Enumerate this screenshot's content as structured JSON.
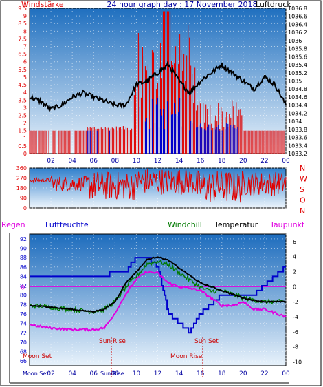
{
  "colors": {
    "red": "#e00000",
    "blue": "#0000cc",
    "black": "#000000",
    "green": "#007a00",
    "magenta": "#e000e0",
    "navy": "#0000a0"
  },
  "top": {
    "left_title": "Windstärke",
    "center_title": "24 hour graph day : 17 November 2018",
    "right_title": "Luftdruck",
    "left_ticks": [
      "0",
      "0.5",
      "1",
      "1.5",
      "2",
      "2.5",
      "3",
      "3.5",
      "4",
      "4.5",
      "5",
      "5.5",
      "6",
      "6.5",
      "7",
      "7.5",
      "8",
      "8.5",
      "9",
      "9.5"
    ],
    "right_ticks": [
      "1033.2",
      "1033.4",
      "1033.6",
      "1033.8",
      "1034",
      "1034.2",
      "1034.4",
      "1034.6",
      "1034.8",
      "1035",
      "1035.2",
      "1035.4",
      "1035.6",
      "1035.8",
      "1036",
      "1036.2",
      "1036.4",
      "1036.6",
      "1036.8"
    ],
    "x_ticks": [
      "02",
      "04",
      "06",
      "08",
      "10",
      "12",
      "14",
      "16",
      "18",
      "20",
      "22",
      "00"
    ]
  },
  "mid": {
    "left_ticks": [
      "0",
      "90",
      "180",
      "270",
      "360"
    ],
    "right_labels": [
      "N",
      "W",
      "S",
      "O",
      "N"
    ]
  },
  "bottom": {
    "legend": {
      "regen": "Regen",
      "luftfeuchte": "Luftfeuchte",
      "windchill": "Windchill",
      "temperatur": "Temperatur",
      "taupunkt": "Taupunkt"
    },
    "left_ticks": [
      "66",
      "68",
      "70",
      "72",
      "74",
      "76",
      "78",
      "80",
      "82",
      "84",
      "86",
      "88",
      "90",
      "92"
    ],
    "right_ticks": [
      "-10",
      "-8",
      "-6",
      "-4",
      "-2",
      "0",
      "2",
      "4",
      "6"
    ],
    "zero_label": "0",
    "x_ticks": [
      "02",
      "04",
      "06",
      "08",
      "10",
      "12",
      "14",
      "16",
      "18",
      "20",
      "22",
      "00"
    ],
    "annotations": {
      "moon_set": "Moon Set",
      "sun_rise": "Sun Rise",
      "sun_set": "Sun Set",
      "moon_rise": "Moon Rise"
    },
    "bottom_labels": {
      "moon_set": "Moon Set",
      "sun_rise": "Sun Rise"
    }
  },
  "chart_data": [
    {
      "type": "line",
      "title": "24 hour graph day : 17 November 2018",
      "ylabel": "Windstärke",
      "y2label": "Luftdruck",
      "ylim": [
        0,
        9.5
      ],
      "y2lim": [
        1033.2,
        1036.8
      ],
      "x": [
        "02",
        "04",
        "06",
        "08",
        "10",
        "12",
        "14",
        "16",
        "18",
        "20",
        "22",
        "00"
      ],
      "series": [
        {
          "name": "Luftdruck",
          "x": [
            0,
            1,
            2,
            3,
            4,
            5,
            6,
            7,
            8,
            9,
            10,
            11,
            12,
            13,
            14,
            15,
            16,
            17,
            18,
            19,
            20,
            21,
            22,
            23,
            24
          ],
          "values": [
            1034.6,
            1034.5,
            1034.3,
            1034.4,
            1034.6,
            1034.7,
            1034.6,
            1034.5,
            1034.4,
            1034.4,
            1034.9,
            1035.0,
            1035.2,
            1035.4,
            1035.0,
            1034.7,
            1035.0,
            1035.2,
            1035.4,
            1035.2,
            1035.0,
            1034.8,
            1035.1,
            1034.9,
            1034.4
          ]
        }
      ]
    },
    {
      "type": "line",
      "title": "",
      "ylabel": "",
      "ylim": [
        0,
        360
      ],
      "x": [
        "02",
        "04",
        "06",
        "08",
        "10",
        "12",
        "14",
        "16",
        "18",
        "20",
        "22",
        "00"
      ]
    },
    {
      "type": "line",
      "title": "",
      "ylim": [
        65,
        93
      ],
      "y2lim": [
        -10.5,
        7
      ],
      "x": [
        "02",
        "04",
        "06",
        "08",
        "10",
        "12",
        "14",
        "16",
        "18",
        "20",
        "22",
        "00"
      ],
      "series": [
        {
          "name": "Luftfeuchte",
          "x": [
            0,
            1,
            2,
            3,
            4,
            5,
            6,
            7,
            8,
            9,
            10,
            11,
            12,
            13,
            14,
            15,
            16,
            17,
            18,
            19,
            20,
            21,
            22,
            23,
            24
          ],
          "values": [
            84,
            84,
            84,
            84,
            84,
            84,
            84,
            84,
            85,
            85,
            88,
            88,
            86,
            76,
            74,
            72,
            76,
            78,
            80,
            80,
            80,
            80,
            82,
            84,
            86
          ]
        },
        {
          "name": "Temperatur",
          "x": [
            0,
            1,
            2,
            3,
            4,
            5,
            6,
            7,
            8,
            9,
            10,
            11,
            12,
            13,
            14,
            15,
            16,
            17,
            18,
            19,
            20,
            21,
            22,
            23,
            24
          ],
          "values": [
            -2.5,
            -2.6,
            -2.7,
            -2.9,
            -3.0,
            -3.2,
            -3.3,
            -3.0,
            -2.0,
            0.5,
            2.0,
            3.6,
            4.0,
            3.5,
            2.5,
            1.5,
            0.5,
            0.0,
            -0.5,
            -1.0,
            -1.5,
            -1.8,
            -2.0,
            -2.0,
            -2.0
          ]
        },
        {
          "name": "Taupunkt",
          "x": [
            0,
            1,
            2,
            3,
            4,
            5,
            6,
            7,
            8,
            9,
            10,
            11,
            12,
            13,
            14,
            15,
            16,
            17,
            18,
            19,
            20,
            21,
            22,
            23,
            24
          ],
          "values": [
            -5.0,
            -5.3,
            -5.5,
            -5.6,
            -5.7,
            -5.7,
            -5.7,
            -5.5,
            -3.5,
            -1.0,
            1.0,
            2.0,
            1.8,
            0.5,
            0.0,
            -0.2,
            -0.5,
            -1.5,
            -2.5,
            -2.5,
            -2.0,
            -3.0,
            -3.0,
            -3.5,
            -4.0
          ]
        }
      ]
    }
  ]
}
